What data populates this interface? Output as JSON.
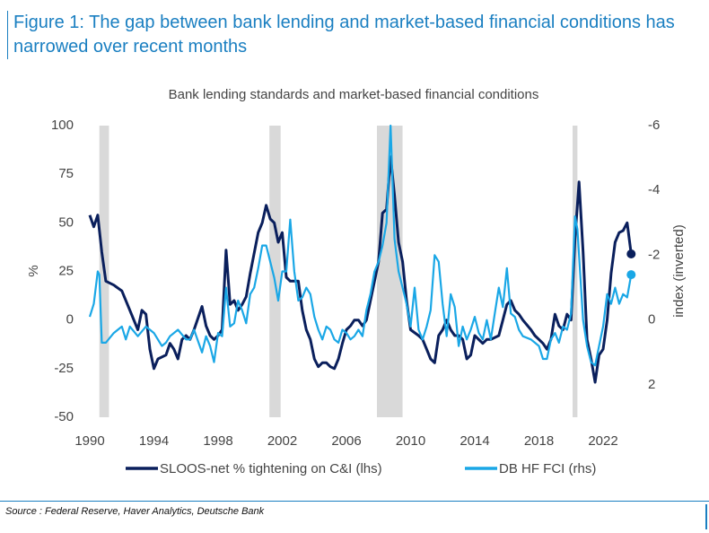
{
  "figure_title": "Figure 1: The gap between bank lending and market-based financial conditions has narrowed over recent months",
  "source": "Source : Federal Reserve, Haver Analytics, Deutsche Bank",
  "chart_data": {
    "type": "line",
    "title": "Bank lending standards and market-based financial conditions",
    "ylabel": "%",
    "y2label": "index (inverted)",
    "xlim": [
      1990,
      2025.5
    ],
    "xticks": [
      1990,
      1994,
      1998,
      2002,
      2006,
      2010,
      2014,
      2018,
      2022
    ],
    "ylim": [
      -50,
      100
    ],
    "yticks": [
      -50,
      -25,
      0,
      25,
      50,
      75,
      100
    ],
    "y2lim": [
      -6,
      3
    ],
    "y2ticks": [
      -6,
      -4,
      -2,
      0,
      2
    ],
    "y2_inverted": true,
    "recessions": [
      [
        1990.6,
        1991.2
      ],
      [
        2001.2,
        2001.9
      ],
      [
        2007.9,
        2009.5
      ],
      [
        2020.1,
        2020.4
      ]
    ],
    "series": [
      {
        "name": "SLOOS-net % tightening on C&I (lhs)",
        "color": "#0a1f5c",
        "axis": "y",
        "x": [
          1990,
          1990.25,
          1990.5,
          1990.75,
          1991,
          1991.5,
          1992,
          1992.5,
          1993,
          1993.25,
          1993.5,
          1993.75,
          1994,
          1994.25,
          1994.75,
          1995,
          1995.25,
          1995.5,
          1995.75,
          1996,
          1996.25,
          1996.5,
          1997,
          1997.25,
          1997.5,
          1997.75,
          1998,
          1998.25,
          1998.5,
          1998.75,
          1999,
          1999.25,
          1999.5,
          1999.75,
          2000,
          2000.5,
          2000.75,
          2001,
          2001.25,
          2001.5,
          2001.75,
          2002,
          2002.25,
          2002.5,
          2002.75,
          2003,
          2003.25,
          2003.5,
          2003.75,
          2004,
          2004.25,
          2004.5,
          2004.75,
          2005,
          2005.25,
          2005.5,
          2005.75,
          2006,
          2006.25,
          2006.5,
          2006.75,
          2007,
          2007.25,
          2007.5,
          2007.75,
          2008,
          2008.25,
          2008.5,
          2008.75,
          2009,
          2009.25,
          2009.5,
          2009.75,
          2010,
          2010.5,
          2010.75,
          2011,
          2011.25,
          2011.5,
          2011.75,
          2012,
          2012.25,
          2012.5,
          2012.75,
          2013,
          2013.25,
          2013.5,
          2013.75,
          2014,
          2014.5,
          2014.75,
          2015,
          2015.5,
          2015.75,
          2016,
          2016.25,
          2016.5,
          2016.75,
          2017,
          2017.5,
          2017.75,
          2018,
          2018.25,
          2018.5,
          2018.75,
          2019,
          2019.25,
          2019.5,
          2019.75,
          2020,
          2020.25,
          2020.5,
          2020.75,
          2021,
          2021.25,
          2021.5,
          2021.75,
          2022,
          2022.25,
          2022.5,
          2022.75,
          2023,
          2023.25,
          2023.5,
          2023.75
        ],
        "values": [
          54,
          48,
          54,
          35,
          20,
          18,
          15,
          5,
          -5,
          5,
          3,
          -15,
          -25,
          -20,
          -18,
          -12,
          -15,
          -20,
          -10,
          -8,
          -10,
          -5,
          7,
          -3,
          -8,
          -10,
          -8,
          -5,
          36,
          8,
          10,
          5,
          8,
          12,
          24,
          45,
          50,
          59,
          52,
          50,
          40,
          45,
          22,
          20,
          20,
          20,
          5,
          -5,
          -10,
          -20,
          -24,
          -22,
          -22,
          -24,
          -25,
          -20,
          -12,
          -5,
          -3,
          0,
          0,
          -3,
          0,
          10,
          20,
          30,
          55,
          57,
          84,
          64,
          40,
          30,
          10,
          -5,
          -8,
          -10,
          -15,
          -20,
          -22,
          -8,
          -5,
          0,
          -5,
          -8,
          -8,
          -10,
          -20,
          -18,
          -8,
          -12,
          -10,
          -10,
          -8,
          0,
          8,
          10,
          5,
          3,
          0,
          -5,
          -8,
          -10,
          -12,
          -15,
          -10,
          3,
          -3,
          -5,
          3,
          0,
          42,
          71,
          35,
          -10,
          -20,
          -32,
          -18,
          -15,
          0,
          24,
          40,
          45,
          46,
          50,
          34
        ]
      },
      {
        "name": "DB HF FCI (rhs)",
        "color": "#1aa7e6",
        "axis": "y2",
        "x": [
          1990,
          1990.25,
          1990.5,
          1990.6,
          1990.75,
          1991,
          1991.5,
          1992,
          1992.25,
          1992.5,
          1993,
          1993.5,
          1994,
          1994.5,
          1994.75,
          1995,
          1995.5,
          1996,
          1996.25,
          1996.5,
          1997,
          1997.25,
          1997.5,
          1997.75,
          1998,
          1998.25,
          1998.5,
          1998.75,
          1999,
          1999.25,
          1999.5,
          1999.75,
          2000,
          2000.25,
          2000.5,
          2000.75,
          2001,
          2001.25,
          2001.5,
          2001.75,
          2002,
          2002.25,
          2002.5,
          2002.75,
          2003,
          2003.25,
          2003.5,
          2003.75,
          2004,
          2004.25,
          2004.5,
          2004.75,
          2005,
          2005.25,
          2005.5,
          2005.75,
          2006,
          2006.25,
          2006.5,
          2006.75,
          2007,
          2007.25,
          2007.5,
          2007.75,
          2008,
          2008.25,
          2008.5,
          2008.75,
          2009,
          2009.25,
          2009.5,
          2009.75,
          2010,
          2010.25,
          2010.5,
          2010.75,
          2011,
          2011.25,
          2011.5,
          2011.75,
          2012,
          2012.25,
          2012.5,
          2012.75,
          2013,
          2013.25,
          2013.5,
          2013.75,
          2014,
          2014.25,
          2014.5,
          2014.75,
          2015,
          2015.25,
          2015.5,
          2015.75,
          2016,
          2016.25,
          2016.5,
          2016.75,
          2017,
          2017.5,
          2017.75,
          2018,
          2018.25,
          2018.5,
          2018.75,
          2019,
          2019.25,
          2019.5,
          2019.75,
          2020,
          2020.25,
          2020.4,
          2020.75,
          2021,
          2021.25,
          2021.5,
          2021.75,
          2022,
          2022.25,
          2022.5,
          2022.75,
          2023,
          2023.25,
          2023.5,
          2023.75
        ],
        "values": [
          -0.1,
          -0.5,
          -1.5,
          -1.4,
          0.7,
          0.7,
          0.4,
          0.2,
          0.6,
          0.2,
          0.5,
          0.2,
          0.4,
          0.8,
          0.7,
          0.5,
          0.3,
          0.6,
          0.6,
          0.3,
          1.0,
          0.5,
          0.8,
          1.3,
          0.4,
          0.5,
          -1.0,
          0.2,
          0.1,
          -0.6,
          -0.3,
          0.1,
          -0.8,
          -1.0,
          -1.6,
          -2.3,
          -2.3,
          -1.8,
          -1.3,
          -0.6,
          -1.5,
          -1.5,
          -3.1,
          -1.5,
          -0.6,
          -0.7,
          -1.0,
          -0.8,
          -0.1,
          0.3,
          0.6,
          0.2,
          0.3,
          0.6,
          0.7,
          0.3,
          0.4,
          0.6,
          0.5,
          0.3,
          0.5,
          -0.3,
          -0.8,
          -1.5,
          -1.8,
          -2.3,
          -3.0,
          -6.0,
          -2.5,
          -1.5,
          -1.0,
          -0.5,
          0.2,
          -1.0,
          0.3,
          0.6,
          0.2,
          -0.3,
          -2.0,
          -1.8,
          -0.5,
          0.5,
          -0.8,
          -0.4,
          0.8,
          0.2,
          0.6,
          0.3,
          -0.1,
          0.4,
          0.6,
          0.0,
          0.6,
          -0.2,
          -1.0,
          -0.4,
          -1.6,
          -0.2,
          -0.1,
          0.3,
          0.5,
          0.6,
          0.7,
          0.8,
          1.2,
          1.2,
          0.6,
          0.4,
          0.7,
          0.2,
          0.3,
          -0.2,
          -3.2,
          -2.8,
          0.0,
          0.8,
          1.3,
          1.4,
          0.8,
          0.2,
          -0.8,
          -0.5,
          -1.0,
          -0.5,
          -0.8,
          -0.7,
          -1.4
        ]
      }
    ]
  }
}
